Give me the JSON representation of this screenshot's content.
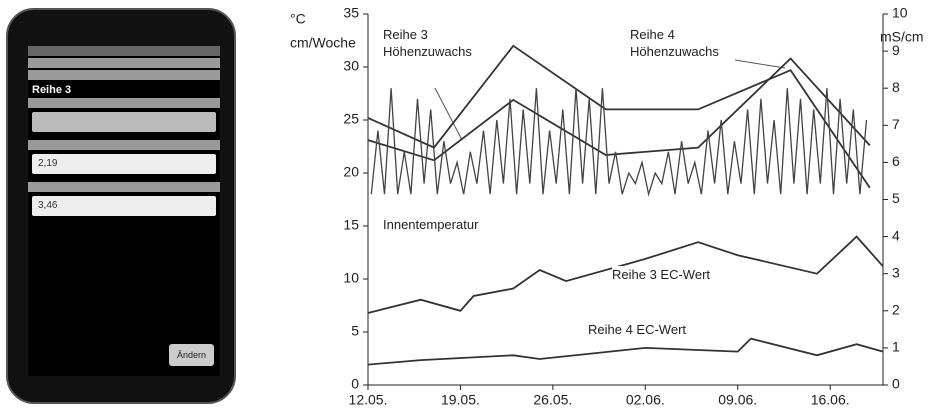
{
  "phone": {
    "title": "Reihe 3",
    "field1": "2,19",
    "field2": "3,46",
    "button": "Ändern"
  },
  "chart_data": {
    "type": "line",
    "ylabel": [
      "°C",
      "cm/Woche"
    ],
    "y2label": "mS/cm",
    "xlim": [
      "12.05.",
      "20.06."
    ],
    "xticks": [
      "12.05.",
      "19.05.",
      "26.05.",
      "02.06.",
      "09.06.",
      "16.06."
    ],
    "ylim": [
      0,
      35
    ],
    "yticks": [
      0,
      5,
      10,
      15,
      20,
      25,
      30,
      35
    ],
    "y2lim": [
      0,
      10
    ],
    "y2ticks": [
      0,
      1,
      2,
      3,
      4,
      5,
      6,
      7,
      8,
      9,
      10
    ],
    "series": [
      {
        "name": "Reihe 3 Höhenzuwachs",
        "color": "#333333",
        "axis": "y",
        "x": [
          "12.05.",
          "17.05.",
          "23.05.",
          "30.05.",
          "06.06.",
          "13.06.",
          "19.06."
        ],
        "values": [
          25.2,
          22.4,
          32,
          26,
          26,
          29.7,
          18.6
        ]
      },
      {
        "name": "Reihe 4 Höhenzuwachs",
        "color": "#333333",
        "axis": "y",
        "x": [
          "12.05.",
          "17.05.",
          "23.05.",
          "30.05.",
          "06.06.",
          "13.06.",
          "19.06."
        ],
        "values": [
          23.1,
          21.2,
          26.9,
          21.7,
          22.4,
          30.8,
          22.6
        ]
      },
      {
        "name": "Innentemperatur",
        "color": "#444444",
        "axis": "y",
        "x": [
          "12.05.",
          "12.05.",
          "13.05.",
          "13.05.",
          "14.05.",
          "14.05.",
          "15.05.",
          "15.05.",
          "16.05.",
          "16.05.",
          "17.05.",
          "17.05.",
          "18.05.",
          "18.05.",
          "19.05.",
          "19.05.",
          "20.05.",
          "20.05.",
          "21.05.",
          "21.05.",
          "22.05.",
          "22.05.",
          "23.05.",
          "23.05.",
          "24.05.",
          "24.05.",
          "25.05.",
          "25.05.",
          "26.05.",
          "26.05.",
          "27.05.",
          "27.05.",
          "28.05.",
          "28.05.",
          "29.05.",
          "29.05.",
          "30.05.",
          "30.05.",
          "31.05.",
          "31.05.",
          "01.06.",
          "01.06.",
          "02.06.",
          "02.06.",
          "03.06.",
          "03.06.",
          "04.06.",
          "04.06.",
          "05.06.",
          "05.06.",
          "06.06.",
          "06.06.",
          "07.06.",
          "07.06.",
          "08.06.",
          "08.06.",
          "09.06.",
          "09.06.",
          "10.06.",
          "10.06.",
          "11.06.",
          "11.06.",
          "12.06.",
          "12.06.",
          "13.06.",
          "13.06.",
          "14.06.",
          "14.06.",
          "15.06.",
          "15.06.",
          "16.06.",
          "16.06.",
          "17.06.",
          "17.06.",
          "18.06.",
          "18.06."
        ],
        "values": [
          18,
          24,
          18,
          28,
          18,
          22,
          18,
          27,
          19,
          26,
          18,
          23,
          19,
          21,
          18,
          22,
          19,
          24,
          18,
          25,
          19,
          27,
          18,
          26,
          19,
          28,
          18,
          24,
          19,
          26,
          18,
          28,
          19,
          27,
          18,
          28,
          19,
          22,
          18,
          20,
          19,
          21,
          18,
          20,
          19,
          22,
          18,
          23,
          19,
          21,
          18,
          24,
          19,
          25,
          18,
          23,
          19,
          26,
          18,
          27,
          19,
          25,
          18,
          28,
          19,
          27,
          18,
          26,
          19,
          28,
          18,
          27,
          19,
          26,
          18,
          25
        ]
      },
      {
        "name": "Reihe 3 EC-Wert",
        "color": "#333333",
        "axis": "y2",
        "x": [
          "12.05.",
          "16.05.",
          "19.05.",
          "20.05.",
          "23.05.",
          "25.05.",
          "27.05.",
          "02.06.",
          "06.06.",
          "09.06.",
          "15.06.",
          "18.06.",
          "20.06."
        ],
        "values": [
          1.94,
          2.3,
          2.0,
          2.4,
          2.6,
          3.1,
          2.8,
          3.4,
          3.85,
          3.5,
          3.0,
          4.0,
          3.2
        ]
      },
      {
        "name": "Reihe 4 EC-Wert",
        "color": "#333333",
        "axis": "y2",
        "x": [
          "12.05.",
          "16.05.",
          "23.05.",
          "25.05.",
          "02.06.",
          "09.06.",
          "10.06.",
          "15.06.",
          "18.06.",
          "20.06."
        ],
        "values": [
          0.55,
          0.67,
          0.8,
          0.7,
          1.0,
          0.9,
          1.25,
          0.8,
          1.1,
          0.9
        ]
      }
    ]
  }
}
